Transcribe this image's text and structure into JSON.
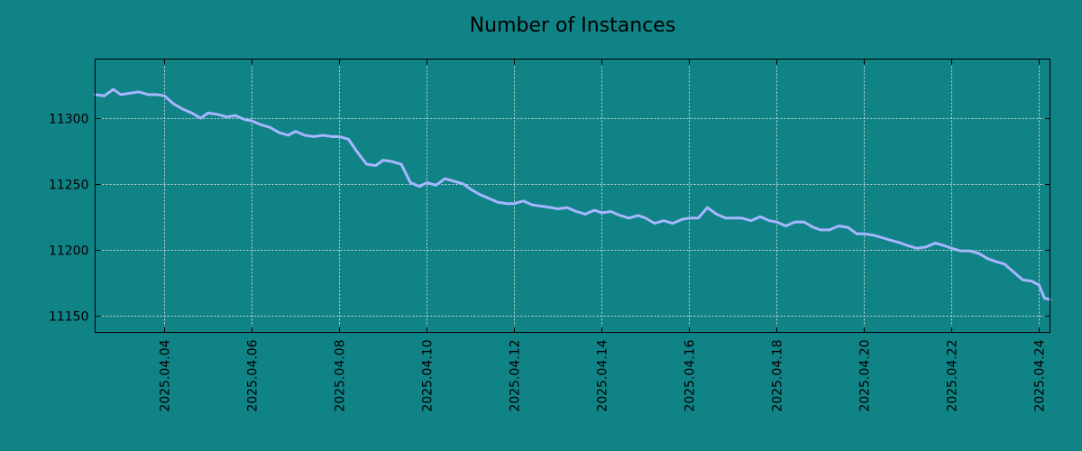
{
  "colors": {
    "background": "#108386",
    "line": "#a6b6ff",
    "axis": "#000000",
    "grid": "#c8d8d8"
  },
  "chart_data": {
    "type": "line",
    "title": "Number of Instances",
    "xlabel": "",
    "ylabel": "",
    "grid": true,
    "legend": "none",
    "x_ticks": [
      "2025.04.04",
      "2025.04.06",
      "2025.04.08",
      "2025.04.10",
      "2025.04.12",
      "2025.04.14",
      "2025.04.16",
      "2025.04.18",
      "2025.04.20",
      "2025.04.22",
      "2025.04.24"
    ],
    "y_ticks": [
      "11150",
      "11200",
      "11250",
      "11300"
    ],
    "xlim": [
      "2025-04-02T10:00",
      "2025-04-24T06:00"
    ],
    "ylim": [
      11137,
      11345
    ],
    "series": [
      {
        "color": "#a6b6ff",
        "x": [
          "2025-04-02T10:00",
          "2025-04-02T15:00",
          "2025-04-02T20:00",
          "2025-04-03T00:00",
          "2025-04-03T05:00",
          "2025-04-03T10:00",
          "2025-04-03T15:00",
          "2025-04-03T20:00",
          "2025-04-04T00:00",
          "2025-04-04T05:00",
          "2025-04-04T10:00",
          "2025-04-04T15:00",
          "2025-04-04T20:00",
          "2025-04-05T00:00",
          "2025-04-05T05:00",
          "2025-04-05T10:00",
          "2025-04-05T15:00",
          "2025-04-05T20:00",
          "2025-04-06T00:00",
          "2025-04-06T05:00",
          "2025-04-06T10:00",
          "2025-04-06T15:00",
          "2025-04-06T20:00",
          "2025-04-07T00:00",
          "2025-04-07T05:00",
          "2025-04-07T10:00",
          "2025-04-07T15:00",
          "2025-04-07T20:00",
          "2025-04-08T00:00",
          "2025-04-08T05:00",
          "2025-04-08T10:00",
          "2025-04-08T15:00",
          "2025-04-08T20:00",
          "2025-04-09T00:00",
          "2025-04-09T05:00",
          "2025-04-09T10:00",
          "2025-04-09T15:00",
          "2025-04-09T20:00",
          "2025-04-10T00:00",
          "2025-04-10T05:00",
          "2025-04-10T10:00",
          "2025-04-10T15:00",
          "2025-04-10T20:00",
          "2025-04-11T00:00",
          "2025-04-11T05:00",
          "2025-04-11T10:00",
          "2025-04-11T15:00",
          "2025-04-11T20:00",
          "2025-04-12T00:00",
          "2025-04-12T05:00",
          "2025-04-12T10:00",
          "2025-04-12T15:00",
          "2025-04-12T20:00",
          "2025-04-13T00:00",
          "2025-04-13T05:00",
          "2025-04-13T10:00",
          "2025-04-13T15:00",
          "2025-04-13T20:00",
          "2025-04-14T00:00",
          "2025-04-14T05:00",
          "2025-04-14T10:00",
          "2025-04-14T15:00",
          "2025-04-14T20:00",
          "2025-04-15T00:00",
          "2025-04-15T05:00",
          "2025-04-15T10:00",
          "2025-04-15T15:00",
          "2025-04-15T20:00",
          "2025-04-16T00:00",
          "2025-04-16T05:00",
          "2025-04-16T10:00",
          "2025-04-16T15:00",
          "2025-04-16T20:00",
          "2025-04-17T00:00",
          "2025-04-17T05:00",
          "2025-04-17T10:00",
          "2025-04-17T15:00",
          "2025-04-17T20:00",
          "2025-04-18T00:00",
          "2025-04-18T05:00",
          "2025-04-18T10:00",
          "2025-04-18T15:00",
          "2025-04-18T20:00",
          "2025-04-19T00:00",
          "2025-04-19T05:00",
          "2025-04-19T10:00",
          "2025-04-19T15:00",
          "2025-04-19T20:00",
          "2025-04-20T00:00",
          "2025-04-20T05:00",
          "2025-04-20T10:00",
          "2025-04-20T15:00",
          "2025-04-20T20:00",
          "2025-04-21T00:00",
          "2025-04-21T05:00",
          "2025-04-21T10:00",
          "2025-04-21T15:00",
          "2025-04-21T20:00",
          "2025-04-22T00:00",
          "2025-04-22T05:00",
          "2025-04-22T10:00",
          "2025-04-22T15:00",
          "2025-04-22T20:00",
          "2025-04-23T00:00",
          "2025-04-23T05:00",
          "2025-04-23T10:00",
          "2025-04-23T15:00",
          "2025-04-23T20:00",
          "2025-04-24T00:00",
          "2025-04-24T03:00",
          "2025-04-24T06:00"
        ],
        "values": [
          11318,
          11317,
          11322,
          11318,
          11319,
          11320,
          11318,
          11318,
          11317,
          11311,
          11307,
          11304,
          11300,
          11304,
          11303,
          11301,
          11302,
          11299,
          11298,
          11295,
          11293,
          11289,
          11287,
          11290,
          11287,
          11286,
          11287,
          11286,
          11286,
          11284,
          11274,
          11265,
          11264,
          11268,
          11267,
          11265,
          11251,
          11248,
          11251,
          11249,
          11254,
          11252,
          11250,
          11246,
          11242,
          11239,
          11236,
          11235,
          11235,
          11237,
          11234,
          11233,
          11232,
          11231,
          11232,
          11229,
          11227,
          11230,
          11228,
          11229,
          11226,
          11224,
          11226,
          11224,
          11220,
          11222,
          11220,
          11223,
          11224,
          11224,
          11232,
          11227,
          11224,
          11224,
          11224,
          11222,
          11225,
          11222,
          11221,
          11218,
          11221,
          11221,
          11217,
          11215,
          11215,
          11218,
          11217,
          11212,
          11212,
          11211,
          11209,
          11207,
          11205,
          11203,
          11201,
          11202,
          11205,
          11203,
          11201,
          11199,
          11199,
          11197,
          11193,
          11191,
          11189,
          11183,
          11177,
          11176,
          11173,
          11163,
          11162
        ]
      }
    ]
  }
}
